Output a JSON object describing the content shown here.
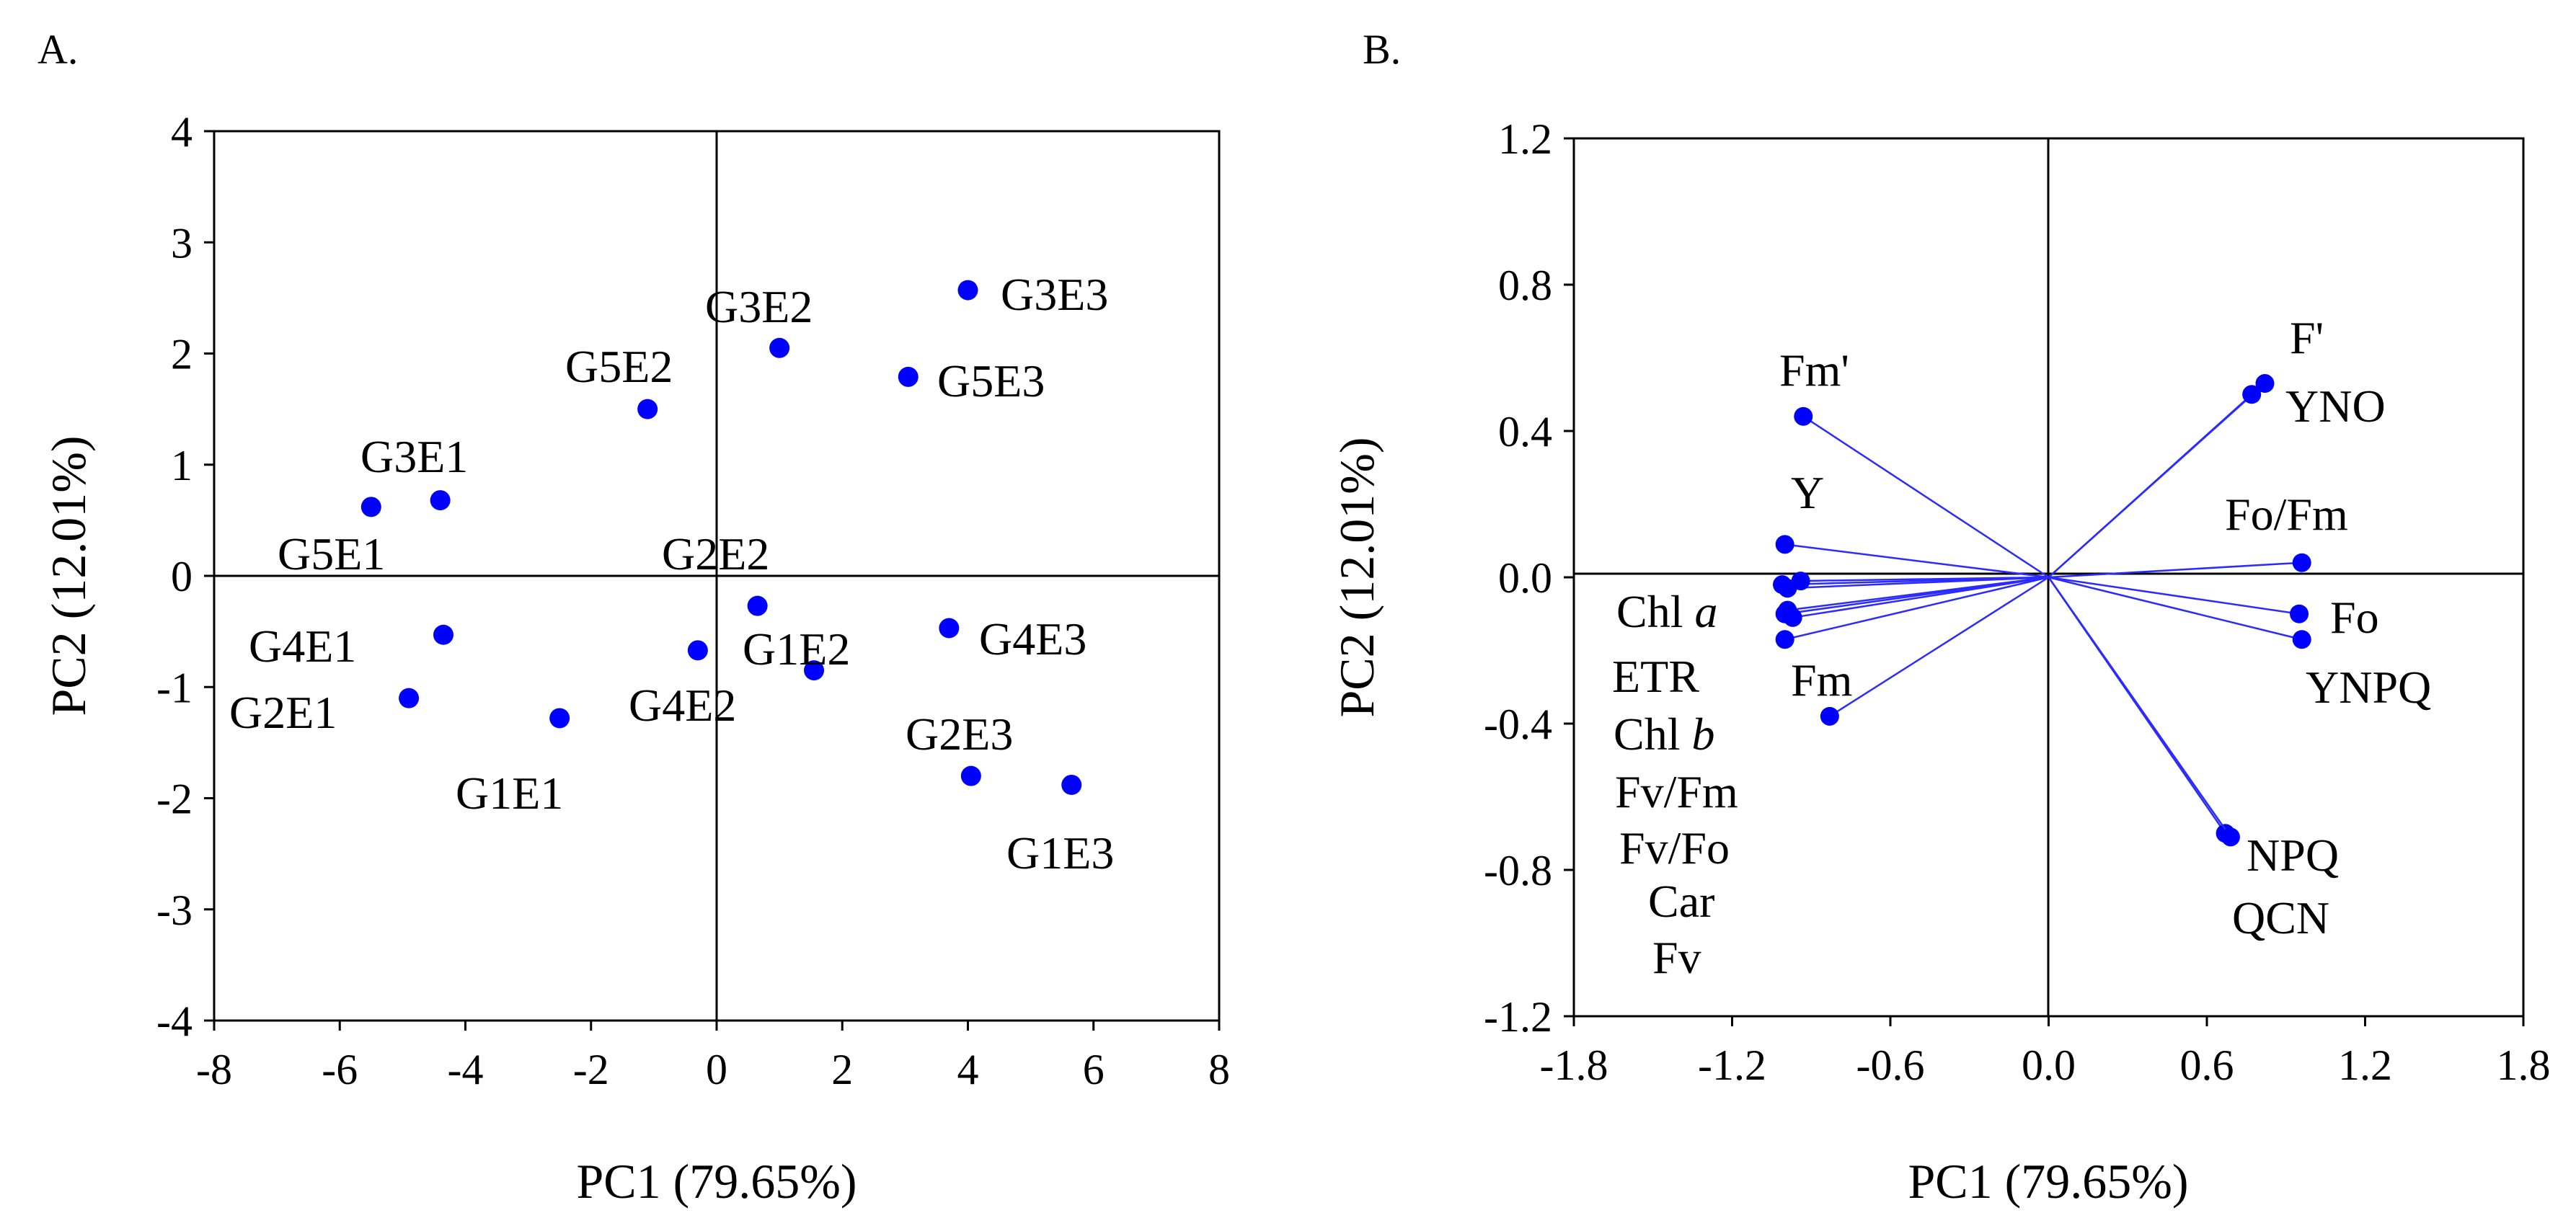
{
  "colors": {
    "marker": "#0000ff",
    "vector": "#2b2bff",
    "axis": "#000000"
  },
  "chart_data": [
    {
      "type": "scatter",
      "panel": "A.",
      "xlabel": "PC1 (79.65%)",
      "ylabel": "PC2 (12.01%)",
      "xlim": [
        -8,
        8
      ],
      "ylim": [
        -4,
        4
      ],
      "xticks": [
        -8,
        -6,
        -4,
        -2,
        0,
        2,
        4,
        6,
        8
      ],
      "yticks": [
        -4,
        -3,
        -2,
        -1,
        0,
        1,
        2,
        3,
        4
      ],
      "xtick_labels": [
        "-8",
        "-6",
        "-4",
        "-2",
        "0",
        "2",
        "4",
        "6",
        "8"
      ],
      "ytick_labels": [
        "-4",
        "-3",
        "-2",
        "-1",
        "0",
        "1",
        "2",
        "3",
        "4"
      ],
      "points": [
        {
          "label": "G3E3",
          "x": 4.0,
          "y": 2.57
        },
        {
          "label": "G3E2",
          "x": 1.0,
          "y": 2.05
        },
        {
          "label": "G5E3",
          "x": 3.05,
          "y": 1.79
        },
        {
          "label": "G5E2",
          "x": -1.1,
          "y": 1.5
        },
        {
          "label": "G3E1",
          "x": -4.4,
          "y": 0.68
        },
        {
          "label": "G5E1",
          "x": -5.5,
          "y": 0.62
        },
        {
          "label": "G2E2",
          "x": 0.65,
          "y": -0.27
        },
        {
          "label": "G4E3",
          "x": 3.7,
          "y": -0.47
        },
        {
          "label": "G4E1",
          "x": -4.35,
          "y": -0.53
        },
        {
          "label": "G4E2",
          "x": -0.3,
          "y": -0.67
        },
        {
          "label": "G1E2",
          "x": 1.55,
          "y": -0.85
        },
        {
          "label": "G2E1",
          "x": -4.9,
          "y": -1.1
        },
        {
          "label": "G1E1",
          "x": -2.5,
          "y": -1.28
        },
        {
          "label": "G2E3",
          "x": 4.05,
          "y": -1.8
        },
        {
          "label": "G1E3",
          "x": 5.65,
          "y": -1.88
        }
      ]
    },
    {
      "type": "scatter",
      "subtype": "loading-vectors",
      "panel": "B.",
      "xlabel": "PC1 (79.65%)",
      "ylabel": "PC2 (12.01%)",
      "xlim": [
        -1.8,
        1.8
      ],
      "ylim": [
        -1.2,
        1.2
      ],
      "xticks": [
        -1.8,
        -1.2,
        -0.6,
        0.0,
        0.6,
        1.2,
        1.8
      ],
      "yticks": [
        -1.2,
        -0.8,
        -0.4,
        0.0,
        0.4,
        0.8,
        1.2
      ],
      "xtick_labels": [
        "-1.8",
        "-1.2",
        "-0.6",
        "0.0",
        "0.6",
        "1.2",
        "1.8"
      ],
      "ytick_labels": [
        "-1.2",
        "-0.8",
        "-0.4",
        "0.0",
        "0.4",
        "0.8",
        "1.2"
      ],
      "vectors": [
        {
          "name": "F'",
          "x": 0.82,
          "y": 0.53
        },
        {
          "name": "YNO",
          "x": 0.77,
          "y": 0.5
        },
        {
          "name": "Fo/Fm",
          "x": 0.96,
          "y": 0.04
        },
        {
          "name": "Fo",
          "x": 0.95,
          "y": -0.1
        },
        {
          "name": "YNPQ",
          "x": 0.96,
          "y": -0.17
        },
        {
          "name": "NPQ",
          "x": 0.67,
          "y": -0.7
        },
        {
          "name": "QCN",
          "x": 0.69,
          "y": -0.71
        },
        {
          "name": "Fm'",
          "x": -0.93,
          "y": 0.44
        },
        {
          "name": "Y",
          "x": -1.0,
          "y": 0.09
        },
        {
          "name": "Chl a",
          "x": -1.01,
          "y": -0.02
        },
        {
          "name": "Chl b",
          "x": -0.99,
          "y": -0.03
        },
        {
          "name": "Car",
          "x": -0.94,
          "y": -0.01
        },
        {
          "name": "ETR",
          "x": -0.99,
          "y": -0.09
        },
        {
          "name": "Fv/Fm",
          "x": -1.0,
          "y": -0.1
        },
        {
          "name": "Fv/Fo",
          "x": -0.97,
          "y": -0.11
        },
        {
          "name": "Fv",
          "x": -1.0,
          "y": -0.17
        },
        {
          "name": "Fm",
          "x": -0.83,
          "y": -0.38
        }
      ],
      "annotations": [
        {
          "text": "F'"
        },
        {
          "text": "YNO"
        },
        {
          "text": "Fo/Fm"
        },
        {
          "text": "Fo"
        },
        {
          "text": "YNPQ"
        },
        {
          "text": "NPQ"
        },
        {
          "text": "QCN"
        },
        {
          "text": "Fm'"
        },
        {
          "text": "Y"
        },
        {
          "text": "Chl ",
          "italic": "a"
        },
        {
          "text": "ETR"
        },
        {
          "text": "Fm"
        },
        {
          "text": "Chl ",
          "italic": "b"
        },
        {
          "text": "Fv/Fm"
        },
        {
          "text": "Fv/Fo"
        },
        {
          "text": "Car"
        },
        {
          "text": "Fv"
        }
      ]
    }
  ]
}
